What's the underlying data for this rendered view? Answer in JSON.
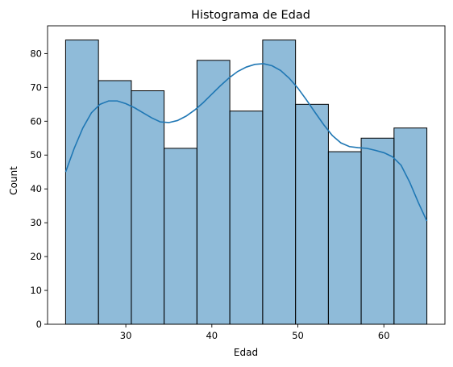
{
  "chart_data": {
    "type": "bar",
    "title": "Histograma de Edad",
    "xlabel": "Edad",
    "ylabel": "Count",
    "bins": [
      {
        "x0": 23.0,
        "x1": 26.82,
        "count": 84
      },
      {
        "x0": 26.82,
        "x1": 30.64,
        "count": 72
      },
      {
        "x0": 30.64,
        "x1": 34.45,
        "count": 69
      },
      {
        "x0": 34.45,
        "x1": 38.27,
        "count": 52
      },
      {
        "x0": 38.27,
        "x1": 42.09,
        "count": 78
      },
      {
        "x0": 42.09,
        "x1": 45.91,
        "count": 63
      },
      {
        "x0": 45.91,
        "x1": 49.73,
        "count": 84
      },
      {
        "x0": 49.73,
        "x1": 53.55,
        "count": 65
      },
      {
        "x0": 53.55,
        "x1": 57.36,
        "count": 51
      },
      {
        "x0": 57.36,
        "x1": 61.18,
        "count": 55
      },
      {
        "x0": 61.18,
        "x1": 65.0,
        "count": 58
      }
    ],
    "kde": {
      "x": [
        23,
        24,
        25,
        26,
        27,
        28,
        29,
        30,
        31,
        32,
        33,
        34,
        35,
        36,
        37,
        38,
        39,
        40,
        41,
        42,
        43,
        44,
        45,
        46,
        47,
        48,
        49,
        50,
        51,
        52,
        53,
        54,
        55,
        56,
        57,
        58,
        59,
        60,
        61,
        62,
        63,
        64,
        65
      ],
      "y": [
        45,
        52,
        58,
        62.5,
        65,
        66,
        66,
        65.2,
        64,
        62.5,
        61,
        59.8,
        59.6,
        60.2,
        61.5,
        63.3,
        65.5,
        68,
        70.5,
        72.8,
        74.7,
        76,
        76.8,
        77,
        76.4,
        75,
        72.7,
        69.8,
        66.3,
        62.6,
        59,
        55.8,
        53.6,
        52.5,
        52.2,
        52,
        51.4,
        50.7,
        49.5,
        47,
        42,
        36,
        30.5
      ]
    },
    "xlim": [
      20.9,
      67.1
    ],
    "ylim": [
      0,
      88.2
    ],
    "xticks": [
      "30",
      "40",
      "50",
      "60"
    ],
    "yticks": [
      "0",
      "10",
      "20",
      "30",
      "40",
      "50",
      "60",
      "70",
      "80"
    ],
    "grid": false,
    "colors": {
      "bar_fill": "#1f77b4",
      "bar_edge": "#000000",
      "kde_line": "#1f77b4"
    }
  }
}
